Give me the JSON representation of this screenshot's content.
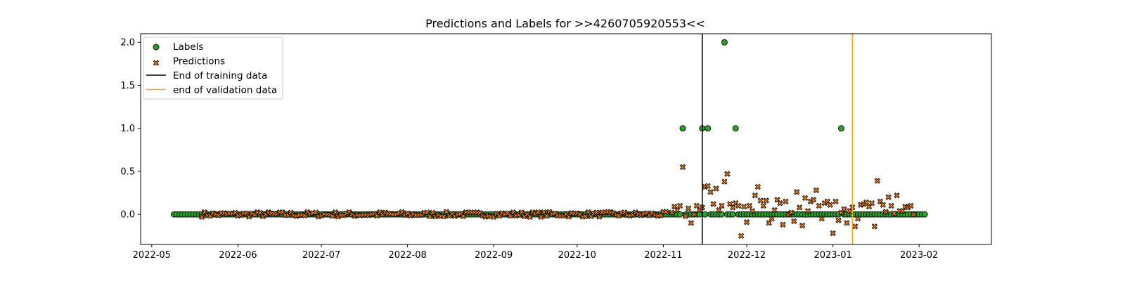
{
  "chart_data": {
    "type": "scatter",
    "title": "Predictions and Labels for >>4260705920553<<",
    "xlabel": "",
    "ylabel": "",
    "x_type": "date",
    "xlim": [
      "2022-04-27",
      "2023-02-27"
    ],
    "ylim": [
      -0.35,
      2.1
    ],
    "x_ticks": [
      "2022-05-01",
      "2022-06-01",
      "2022-07-01",
      "2022-08-01",
      "2022-09-01",
      "2022-10-01",
      "2022-11-01",
      "2022-12-01",
      "2023-01-01",
      "2023-02-01"
    ],
    "x_tick_labels": [
      "2022-05",
      "2022-06",
      "2022-07",
      "2022-08",
      "2022-09",
      "2022-10",
      "2022-11",
      "2022-12",
      "2023-01",
      "2023-02"
    ],
    "y_ticks": [
      0.0,
      0.5,
      1.0,
      1.5,
      2.0
    ],
    "y_tick_labels": [
      "0.0",
      "0.5",
      "1.0",
      "1.5",
      "2.0"
    ],
    "grid": false,
    "legend_position": "top-left",
    "labels_series": {
      "name": "Labels",
      "marker": "circle",
      "color": "#2ca02c",
      "edge_color": "#000000",
      "date_range": [
        "2022-05-09",
        "2023-02-03"
      ],
      "baseline_value": 0,
      "nonzero_points": [
        {
          "x": "2022-11-08",
          "y": 1.0
        },
        {
          "x": "2022-11-15",
          "y": 1.0
        },
        {
          "x": "2022-11-17",
          "y": 1.0
        },
        {
          "x": "2022-11-23",
          "y": 2.0
        },
        {
          "x": "2022-11-27",
          "y": 1.0
        },
        {
          "x": "2023-01-04",
          "y": 1.0
        }
      ]
    },
    "predictions_series": {
      "name": "Predictions",
      "marker": "x-filled",
      "color": "#ff7f0e",
      "edge_color": "#000000",
      "baseline_range": [
        "2022-05-19",
        "2022-11-02"
      ],
      "baseline_noise": 0.03,
      "points": [
        {
          "x": "2022-11-04",
          "y": 0.02
        },
        {
          "x": "2022-11-05",
          "y": 0.09
        },
        {
          "x": "2022-11-06",
          "y": 0.05
        },
        {
          "x": "2022-11-07",
          "y": 0.1
        },
        {
          "x": "2022-11-08",
          "y": 0.55
        },
        {
          "x": "2022-11-09",
          "y": -0.02
        },
        {
          "x": "2022-11-10",
          "y": 0.07
        },
        {
          "x": "2022-11-11",
          "y": -0.1
        },
        {
          "x": "2022-11-12",
          "y": 0.0
        },
        {
          "x": "2022-11-13",
          "y": 0.1
        },
        {
          "x": "2022-11-14",
          "y": 0.05
        },
        {
          "x": "2022-11-15",
          "y": 0.08
        },
        {
          "x": "2022-11-16",
          "y": 0.32
        },
        {
          "x": "2022-11-17",
          "y": 0.33
        },
        {
          "x": "2022-11-18",
          "y": 0.26
        },
        {
          "x": "2022-11-19",
          "y": 0.12
        },
        {
          "x": "2022-11-20",
          "y": 0.3
        },
        {
          "x": "2022-11-21",
          "y": 0.05
        },
        {
          "x": "2022-11-22",
          "y": 0.1
        },
        {
          "x": "2022-11-23",
          "y": 0.38
        },
        {
          "x": "2022-11-24",
          "y": 0.47
        },
        {
          "x": "2022-11-25",
          "y": 0.12
        },
        {
          "x": "2022-11-26",
          "y": 0.08
        },
        {
          "x": "2022-11-27",
          "y": 0.13
        },
        {
          "x": "2022-11-28",
          "y": 0.1
        },
        {
          "x": "2022-11-29",
          "y": -0.25
        },
        {
          "x": "2022-11-30",
          "y": 0.09
        },
        {
          "x": "2022-12-01",
          "y": -0.09
        },
        {
          "x": "2022-12-02",
          "y": 0.1
        },
        {
          "x": "2022-12-03",
          "y": 0.04
        },
        {
          "x": "2022-12-04",
          "y": 0.22
        },
        {
          "x": "2022-12-05",
          "y": 0.32
        },
        {
          "x": "2022-12-06",
          "y": 0.16
        },
        {
          "x": "2022-12-07",
          "y": 0.1
        },
        {
          "x": "2022-12-08",
          "y": 0.16
        },
        {
          "x": "2022-12-09",
          "y": -0.1
        },
        {
          "x": "2022-12-10",
          "y": -0.05
        },
        {
          "x": "2022-12-11",
          "y": 0.05
        },
        {
          "x": "2022-12-12",
          "y": 0.17
        },
        {
          "x": "2022-12-13",
          "y": 0.13
        },
        {
          "x": "2022-12-14",
          "y": -0.12
        },
        {
          "x": "2022-12-15",
          "y": 0.15
        },
        {
          "x": "2022-12-16",
          "y": 0.0
        },
        {
          "x": "2022-12-17",
          "y": 0.02
        },
        {
          "x": "2022-12-18",
          "y": -0.08
        },
        {
          "x": "2022-12-19",
          "y": 0.26
        },
        {
          "x": "2022-12-20",
          "y": 0.08
        },
        {
          "x": "2022-12-21",
          "y": -0.13
        },
        {
          "x": "2022-12-22",
          "y": 0.19
        },
        {
          "x": "2022-12-23",
          "y": 0.04
        },
        {
          "x": "2022-12-24",
          "y": 0.15
        },
        {
          "x": "2022-12-25",
          "y": 0.17
        },
        {
          "x": "2022-12-26",
          "y": 0.28
        },
        {
          "x": "2022-12-27",
          "y": 0.1
        },
        {
          "x": "2022-12-28",
          "y": -0.05
        },
        {
          "x": "2022-12-29",
          "y": 0.13
        },
        {
          "x": "2022-12-30",
          "y": 0.15
        },
        {
          "x": "2022-12-31",
          "y": 0.11
        },
        {
          "x": "2023-01-01",
          "y": -0.22
        },
        {
          "x": "2023-01-02",
          "y": 0.15
        },
        {
          "x": "2023-01-03",
          "y": -0.07
        },
        {
          "x": "2023-01-04",
          "y": 0.02
        },
        {
          "x": "2023-01-05",
          "y": 0.06
        },
        {
          "x": "2023-01-06",
          "y": -0.1
        },
        {
          "x": "2023-01-07",
          "y": 0.04
        },
        {
          "x": "2023-01-08",
          "y": 0.08
        },
        {
          "x": "2023-01-09",
          "y": -0.14
        },
        {
          "x": "2023-01-10",
          "y": -0.05
        },
        {
          "x": "2023-01-11",
          "y": 0.11
        },
        {
          "x": "2023-01-12",
          "y": 0.12
        },
        {
          "x": "2023-01-13",
          "y": 0.14
        },
        {
          "x": "2023-01-14",
          "y": 0.09
        },
        {
          "x": "2023-01-15",
          "y": 0.13
        },
        {
          "x": "2023-01-16",
          "y": -0.14
        },
        {
          "x": "2023-01-17",
          "y": 0.39
        },
        {
          "x": "2023-01-18",
          "y": 0.15
        },
        {
          "x": "2023-01-19",
          "y": 0.11
        },
        {
          "x": "2023-01-20",
          "y": 0.03
        },
        {
          "x": "2023-01-21",
          "y": 0.2
        },
        {
          "x": "2023-01-22",
          "y": 0.1
        },
        {
          "x": "2023-01-23",
          "y": 0.01
        },
        {
          "x": "2023-01-24",
          "y": 0.22
        },
        {
          "x": "2023-01-25",
          "y": 0.04
        },
        {
          "x": "2023-01-26",
          "y": 0.04
        },
        {
          "x": "2023-01-27",
          "y": 0.09
        },
        {
          "x": "2023-01-28",
          "y": 0.08
        },
        {
          "x": "2023-01-29",
          "y": 0.1
        },
        {
          "x": "2023-01-30",
          "y": 0.0
        }
      ]
    },
    "vertical_lines": [
      {
        "name": "End of training data",
        "x": "2022-11-15",
        "color": "#000000"
      },
      {
        "name": "end of validation data",
        "x": "2023-01-08",
        "color": "#ffa500"
      }
    ],
    "legend": [
      {
        "label": "Labels",
        "kind": "marker-circle",
        "color": "#2ca02c"
      },
      {
        "label": "Predictions",
        "kind": "marker-x",
        "color": "#ff7f0e"
      },
      {
        "label": "End of training data",
        "kind": "line",
        "color": "#000000"
      },
      {
        "label": "end of validation data",
        "kind": "line",
        "color": "#ffa500"
      }
    ]
  }
}
